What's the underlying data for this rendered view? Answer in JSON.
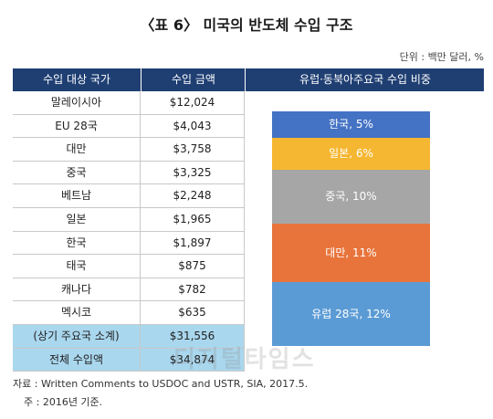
{
  "title": "〈표 6〉 미국의 반도체 수입 구조",
  "unit": "단위 : 백만 달러, %",
  "headers": {
    "country": "수입 대상 국가",
    "amount": "수입 금액",
    "share": "유럽·동북아주요국 수입 비중"
  },
  "rows": [
    {
      "country": "말레이시아",
      "amount": "$12,024"
    },
    {
      "country": "EU 28국",
      "amount": "$4,043"
    },
    {
      "country": "대만",
      "amount": "$3,758"
    },
    {
      "country": "중국",
      "amount": "$3,325"
    },
    {
      "country": "베트남",
      "amount": "$2,248"
    },
    {
      "country": "일본",
      "amount": "$1,965"
    },
    {
      "country": "한국",
      "amount": "$1,897"
    },
    {
      "country": "태국",
      "amount": "$875"
    },
    {
      "country": "캐나다",
      "amount": "$782"
    },
    {
      "country": "멕시코",
      "amount": "$635"
    },
    {
      "country": "(상기 주요국 소계)",
      "amount": "$31,556"
    },
    {
      "country": "전체 수입액",
      "amount": "$34,874"
    }
  ],
  "chart_data": {
    "type": "bar",
    "categories": [
      "한국",
      "일본",
      "중국",
      "대만",
      "유럽 28국"
    ],
    "values": [
      5,
      6,
      10,
      11,
      12
    ],
    "labels": [
      "한국, 5%",
      "일본, 6%",
      "중국, 10%",
      "대만, 11%",
      "유럽 28국, 12%"
    ],
    "colors": [
      "#4472c4",
      "#f5b731",
      "#a6a6a6",
      "#e8743b",
      "#5b9bd5"
    ]
  },
  "watermark": "디지털타임스",
  "source": "자료 : Written Comments to USDOC and USTR, SIA, 2017.5.",
  "note": "주 : 2016년 기준."
}
